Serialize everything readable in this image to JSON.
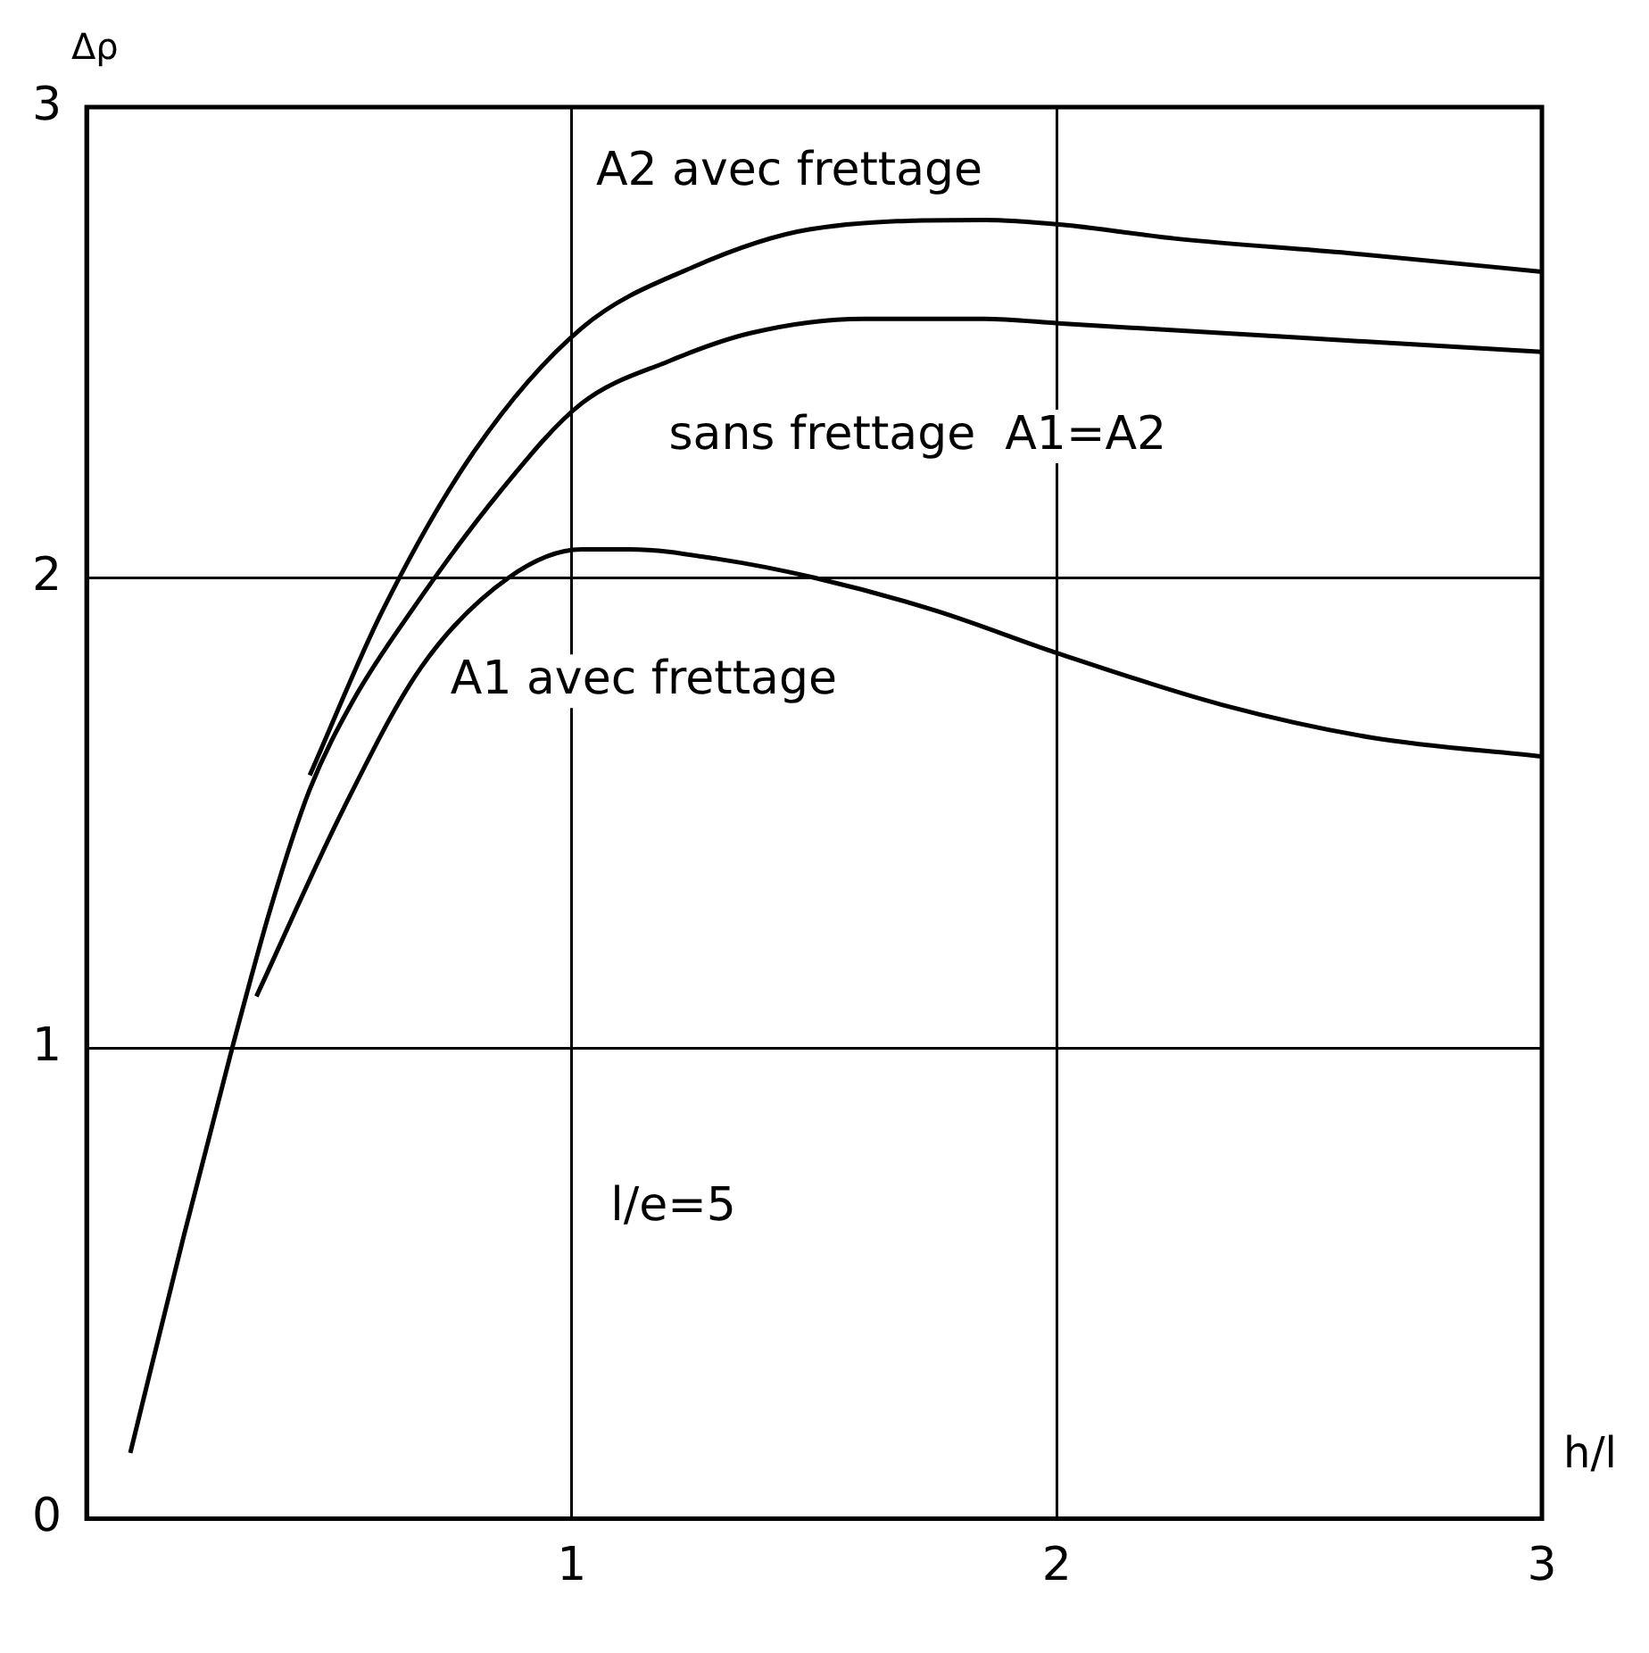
{
  "chart_data": {
    "type": "line",
    "ylabel": "Δρ",
    "xlabel": "h/l",
    "xlim": [
      0,
      3
    ],
    "ylim": [
      0,
      3
    ],
    "xticks": [
      1,
      2,
      3
    ],
    "yticks": [
      0,
      1,
      2,
      3
    ],
    "grid": true,
    "legend": false,
    "marker": "none",
    "line_style": "solid",
    "annotations": [
      "l/e=5"
    ],
    "series": [
      {
        "name": "A2 avec frettage",
        "color": "#000000",
        "x": [
          0.46,
          0.61,
          0.8,
          1.02,
          1.25,
          1.49,
          1.85,
          2.01,
          2.25,
          2.6,
          3.0
        ],
        "values": [
          1.58,
          1.93,
          2.27,
          2.53,
          2.66,
          2.74,
          2.76,
          2.75,
          2.72,
          2.69,
          2.65
        ]
      },
      {
        "name": "sans frettage  A1=A2",
        "color": "#000000",
        "x": [
          0.09,
          0.2,
          0.3,
          0.38,
          0.46,
          0.55,
          0.67,
          0.85,
          1.02,
          1.2,
          1.37,
          1.6,
          1.85,
          2.01,
          2.5,
          3.0
        ],
        "values": [
          0.14,
          0.6,
          1.0,
          1.3,
          1.55,
          1.74,
          1.93,
          2.18,
          2.37,
          2.46,
          2.52,
          2.55,
          2.55,
          2.54,
          2.51,
          2.48
        ]
      },
      {
        "name": "A1 avec frettage",
        "color": "#000000",
        "x": [
          0.35,
          0.53,
          0.69,
          0.87,
          1.02,
          1.12,
          1.3,
          1.5,
          1.75,
          2.0,
          2.34,
          2.65,
          3.0
        ],
        "values": [
          1.11,
          1.51,
          1.81,
          2.0,
          2.06,
          2.06,
          2.04,
          2.0,
          1.93,
          1.84,
          1.73,
          1.66,
          1.62
        ]
      }
    ]
  }
}
